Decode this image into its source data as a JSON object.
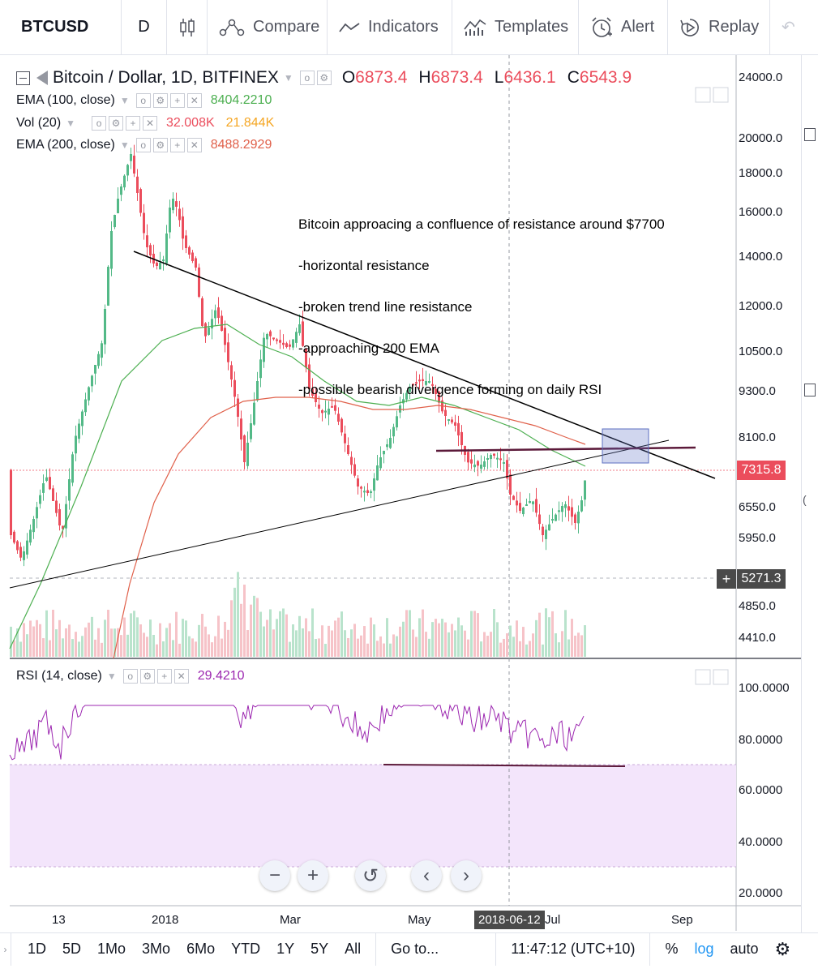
{
  "toolbar": {
    "symbol": "BTCUSD",
    "interval": "D",
    "compare": "Compare",
    "indicators": "Indicators",
    "templates": "Templates",
    "alert": "Alert",
    "replay": "Replay"
  },
  "legend": {
    "title": "Bitcoin / Dollar, 1D, BITFINEX",
    "open_label": "O",
    "open": "6873.4",
    "high_label": "H",
    "high": "6873.4",
    "low_label": "L",
    "low": "6436.1",
    "close_label": "C",
    "close": "6543.9",
    "ema100_label": "EMA (100, close)",
    "ema100_value": "8404.2210",
    "vol_label": "Vol (20)",
    "vol_value1": "32.008K",
    "vol_value2": "21.844K",
    "ema200_label": "EMA (200, close)",
    "ema200_value": "8488.2929",
    "rsi_label": "RSI (14, close)",
    "rsi_value": "29.4210"
  },
  "annotation": {
    "lines": [
      "Bitcoin approacing a confluence of resistance around $7700",
      "-horizontal resistance",
      "-broken trend line resistance",
      "-approaching 200 EMA",
      "-possible bearish divergence forming on daily RSI"
    ]
  },
  "price_axis": {
    "ticks": [
      "24000.0",
      "20000.0",
      "18000.0",
      "16000.0",
      "14000.0",
      "12000.0",
      "10500.0",
      "9300.0",
      "8100.0",
      "6550.0",
      "5950.0",
      "4850.0",
      "4410.0"
    ],
    "current_price": "7315.8",
    "crosshair_price": "5271.3"
  },
  "rsi_axis": {
    "ticks": [
      "100.0000",
      "80.0000",
      "60.0000",
      "40.0000",
      "20.0000"
    ]
  },
  "time_axis": {
    "ticks": [
      "13",
      "2018",
      "Mar",
      "May",
      "Jul",
      "Sep"
    ],
    "crosshair_date": "2018-06-12"
  },
  "bottombar": {
    "ranges": [
      "1D",
      "5D",
      "1Mo",
      "3Mo",
      "6Mo",
      "YTD",
      "1Y",
      "5Y",
      "All"
    ],
    "goto": "Go to...",
    "clock": "11:47:12 (UTC+10)",
    "percent": "%",
    "log": "log",
    "auto": "auto"
  },
  "colors": {
    "up": "#53b987",
    "down": "#eb4d5c",
    "ema100": "#4caf50",
    "ema200": "#e0604a",
    "rsi": "#9c27b0",
    "log_active": "#2196f3"
  }
}
